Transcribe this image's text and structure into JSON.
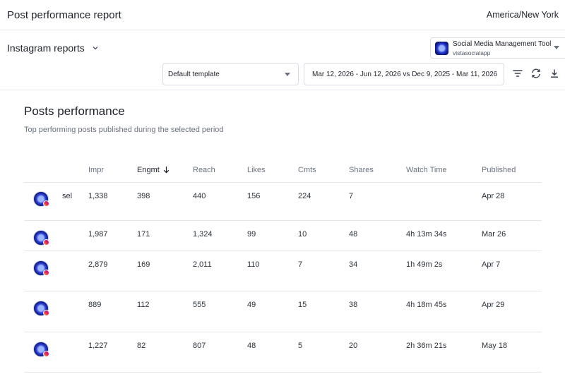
{
  "header": {
    "title": "Post performance report",
    "timezone": "America/New York"
  },
  "report_selector": {
    "label": "Instagram reports"
  },
  "profile": {
    "name": "Social Media Management Tool f",
    "handle": "vistasocialapp"
  },
  "template_select": {
    "value": "Default template"
  },
  "date_range": {
    "value": "Mar 12, 2026 - Jun 12, 2026 vs Dec 9, 2025 - Mar 11, 2026"
  },
  "toolbar": {
    "icons": [
      "filter-icon",
      "refresh-icon",
      "download-icon"
    ]
  },
  "section": {
    "title": "Posts performance",
    "subtitle": "Top performing posts published during the selected period"
  },
  "table": {
    "columns": [
      "Impr",
      "Engmt",
      "Reach",
      "Likes",
      "Cmts",
      "Shares",
      "Watch Time",
      "Published"
    ],
    "sorted_column": "Engmt",
    "rows": [
      {
        "label": "sel",
        "impr": "1,338",
        "engmt": "398",
        "reach": "440",
        "likes": "156",
        "cmts": "224",
        "shares": "7",
        "watch_time": "",
        "published": "Apr 28"
      },
      {
        "label": "",
        "impr": "1,987",
        "engmt": "171",
        "reach": "1,324",
        "likes": "99",
        "cmts": "10",
        "shares": "48",
        "watch_time": "4h 13m 34s",
        "published": "Mar 26"
      },
      {
        "label": "",
        "impr": "2,879",
        "engmt": "169",
        "reach": "2,011",
        "likes": "110",
        "cmts": "7",
        "shares": "34",
        "watch_time": "1h 49m 2s",
        "published": "Apr 7"
      },
      {
        "label": "",
        "impr": "889",
        "engmt": "112",
        "reach": "555",
        "likes": "49",
        "cmts": "15",
        "shares": "38",
        "watch_time": "4h 18m 45s",
        "published": "Apr 29"
      },
      {
        "label": "",
        "impr": "1,227",
        "engmt": "82",
        "reach": "807",
        "likes": "48",
        "cmts": "5",
        "shares": "20",
        "watch_time": "2h 36m 21s",
        "published": "May 18"
      }
    ]
  },
  "colors": {
    "border": "#e3e6ea",
    "muted_text": "#6b7280",
    "text": "#1d2129",
    "brand_blue": "#2d3fd4"
  }
}
